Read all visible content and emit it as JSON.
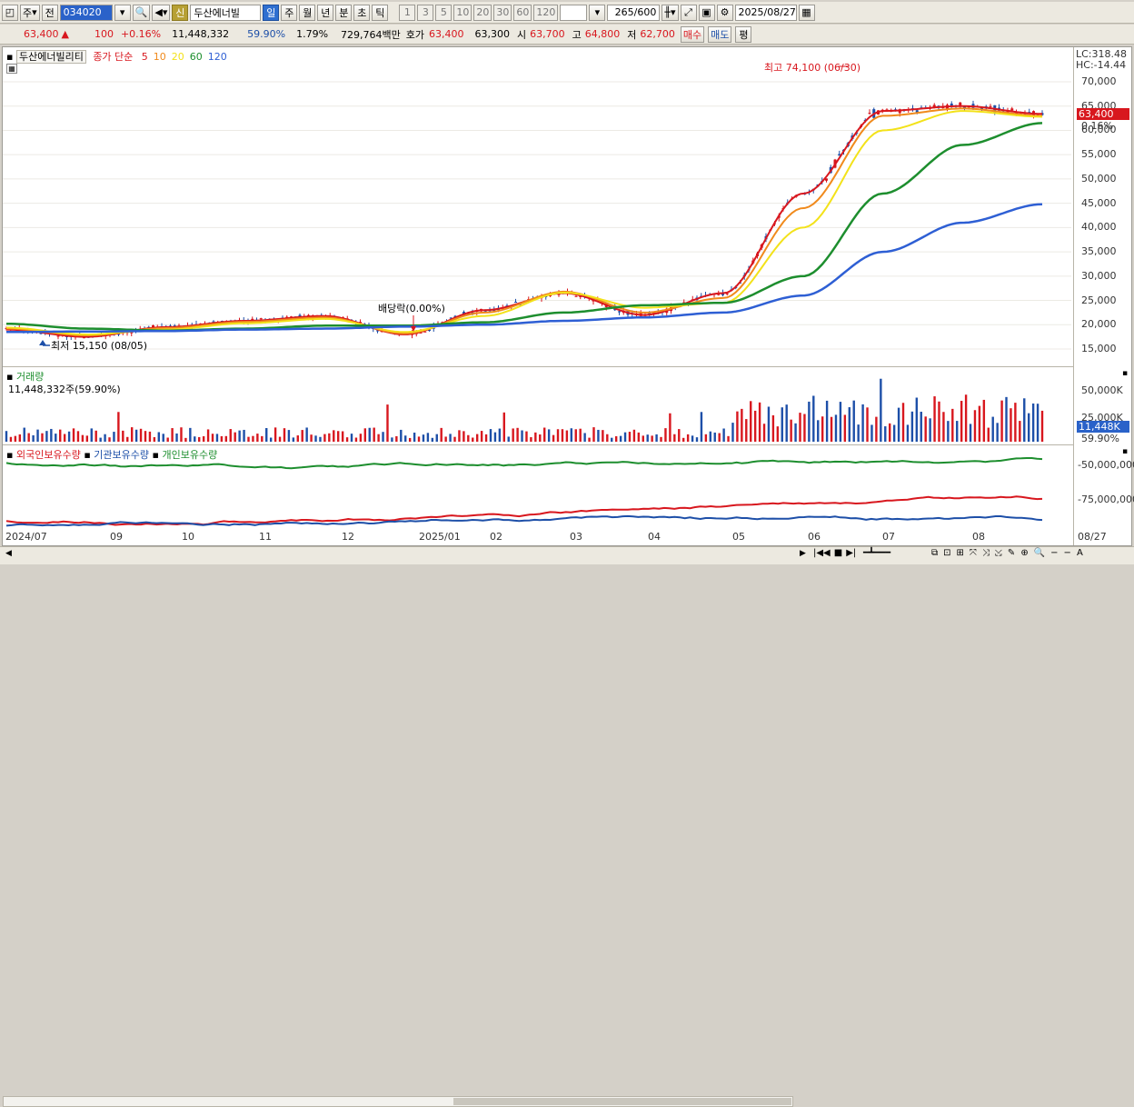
{
  "toolbar": {
    "market": "주",
    "prev_label": "전",
    "code": "034020",
    "credit_badge": "신",
    "name": "두산에너빌",
    "periods": [
      "일",
      "주",
      "월",
      "년",
      "분",
      "초",
      "틱"
    ],
    "active_period": "일",
    "intervals": [
      "1",
      "3",
      "5",
      "10",
      "20",
      "30",
      "60",
      "120"
    ],
    "count": "265",
    "count_max": "/600",
    "date": "2025/08/27"
  },
  "quote": {
    "price": "63,400",
    "change": "100",
    "change_pct": "+0.16%",
    "volume": "11,448,332",
    "vol_ratio": "59.90%",
    "turnover": "1.79%",
    "amount": "729,764백만",
    "ask_label": "호가",
    "ask": "63,400",
    "bid": "63,300",
    "open_label": "시",
    "open": "63,700",
    "high_label": "고",
    "high": "64,800",
    "low_label": "저",
    "low": "62,700",
    "buy_btn": "매수",
    "sell_btn": "매도",
    "eval_btn": "평"
  },
  "price_pane": {
    "title": "두산에너빌리티",
    "ma_label": "종가 단순",
    "ma_periods": [
      "5",
      "10",
      "20",
      "60",
      "120"
    ],
    "lc": "LC:318.48",
    "hc": "HC:-14.44",
    "current_tag": "63,400",
    "current_pct": "0.16%",
    "high_note": "최고 74,100 (06/30)",
    "low_note": "최저 15,150 (08/05)",
    "dividend_note": "배당락(0.00%)",
    "y_ticks": [
      "70,000",
      "65,000",
      "60,000",
      "55,000",
      "50,000",
      "45,000",
      "40,000",
      "35,000",
      "30,000",
      "25,000",
      "20,000",
      "15,000"
    ]
  },
  "volume_pane": {
    "title": "거래량",
    "value": "11,448,332주(59.90%)",
    "y_ticks": [
      "50,000K",
      "25,000K"
    ],
    "current_tag": "11,448K",
    "current_pct": "59.90%"
  },
  "holdings_pane": {
    "legend": [
      "외국인보유수량",
      "기관보유수량",
      "개인보유수량"
    ],
    "y_ticks": [
      "-50,000,000",
      "-75,000,000"
    ]
  },
  "x_axis": {
    "labels": [
      "2024/07",
      "09",
      "10",
      "11",
      "12",
      "2025/01",
      "02",
      "03",
      "04",
      "05",
      "06",
      "07",
      "08"
    ],
    "end_label": "08/27"
  },
  "colors": {
    "up": "#d8171e",
    "down": "#1d4fa8",
    "ma5": "#d8171e",
    "ma10": "#f08a1c",
    "ma20": "#f3e21a",
    "ma60": "#1d8e2e",
    "ma120": "#2e5fd4"
  },
  "chart_data": {
    "type": "line",
    "title": "두산에너빌리티",
    "x": [
      "2024/07",
      "09",
      "10",
      "11",
      "12",
      "2025/01",
      "02",
      "03",
      "04",
      "05",
      "06",
      "07",
      "08",
      "08/27"
    ],
    "series": [
      {
        "name": "5",
        "values": [
          19000,
          17500,
          19500,
          20800,
          21800,
          18000,
          23000,
          26500,
          22000,
          26500,
          47000,
          64000,
          65000,
          63400
        ]
      },
      {
        "name": "10",
        "values": [
          19200,
          17800,
          19300,
          20600,
          21500,
          18200,
          22500,
          26800,
          22500,
          25500,
          44000,
          63000,
          64500,
          63000
        ]
      },
      {
        "name": "20",
        "values": [
          19400,
          18000,
          19000,
          20300,
          21200,
          18500,
          21800,
          26600,
          23500,
          24500,
          40000,
          60000,
          64000,
          62800
        ]
      },
      {
        "name": "60",
        "values": [
          20200,
          19200,
          18800,
          19200,
          19800,
          19800,
          20500,
          22500,
          24000,
          24500,
          30000,
          47000,
          57000,
          61500
        ]
      },
      {
        "name": "120",
        "values": [
          18500,
          18600,
          18700,
          19000,
          19200,
          19600,
          20000,
          20800,
          21500,
          22500,
          26000,
          35000,
          41000,
          44800
        ]
      }
    ],
    "ylim": [
      15000,
      74100
    ],
    "high": 74100,
    "low": 15150
  }
}
